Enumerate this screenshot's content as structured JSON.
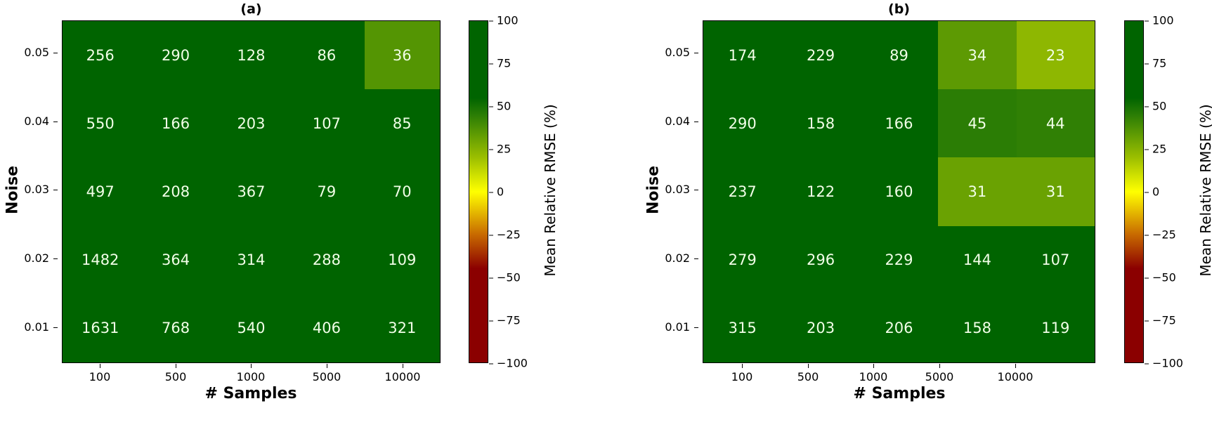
{
  "chart_data": [
    {
      "type": "heatmap",
      "title": "(a)",
      "xlabel": "# Samples",
      "ylabel": "Noise",
      "x": [
        "100",
        "500",
        "1000",
        "5000",
        "10000"
      ],
      "y": [
        "0.05",
        "0.04",
        "0.03",
        "0.02",
        "0.01"
      ],
      "values": [
        [
          256,
          290,
          128,
          86,
          36
        ],
        [
          550,
          166,
          203,
          107,
          85
        ],
        [
          497,
          208,
          367,
          79,
          70
        ],
        [
          1482,
          364,
          314,
          288,
          109
        ],
        [
          1631,
          768,
          540,
          406,
          321
        ]
      ],
      "colorbar": {
        "label": "Mean Relative RMSE (%)",
        "range": [
          -100,
          100
        ],
        "ticks": [
          "100",
          "75",
          "50",
          "25",
          "0",
          "−25",
          "−50",
          "−75",
          "−100"
        ],
        "colors": {
          "low": "#8b0000",
          "mid": "#ffff00",
          "high": "#006400"
        }
      }
    },
    {
      "type": "heatmap",
      "title": "(b)",
      "xlabel": "# Samples",
      "ylabel": "Noise",
      "x": [
        "100",
        "500",
        "1000",
        "5000",
        "10000"
      ],
      "y": [
        "0.05",
        "0.04",
        "0.03",
        "0.02",
        "0.01"
      ],
      "values": [
        [
          174,
          229,
          89,
          34,
          23
        ],
        [
          290,
          158,
          166,
          45,
          44
        ],
        [
          237,
          122,
          160,
          31,
          31
        ],
        [
          279,
          296,
          229,
          144,
          107
        ],
        [
          315,
          203,
          206,
          158,
          119
        ]
      ],
      "colorbar": {
        "label": "Mean Relative RMSE (%)",
        "range": [
          -100,
          100
        ],
        "ticks": [
          "100",
          "75",
          "50",
          "25",
          "0",
          "−25",
          "−50",
          "−75",
          "−100"
        ],
        "colors": {
          "low": "#8b0000",
          "mid": "#ffff00",
          "high": "#006400"
        }
      }
    }
  ]
}
